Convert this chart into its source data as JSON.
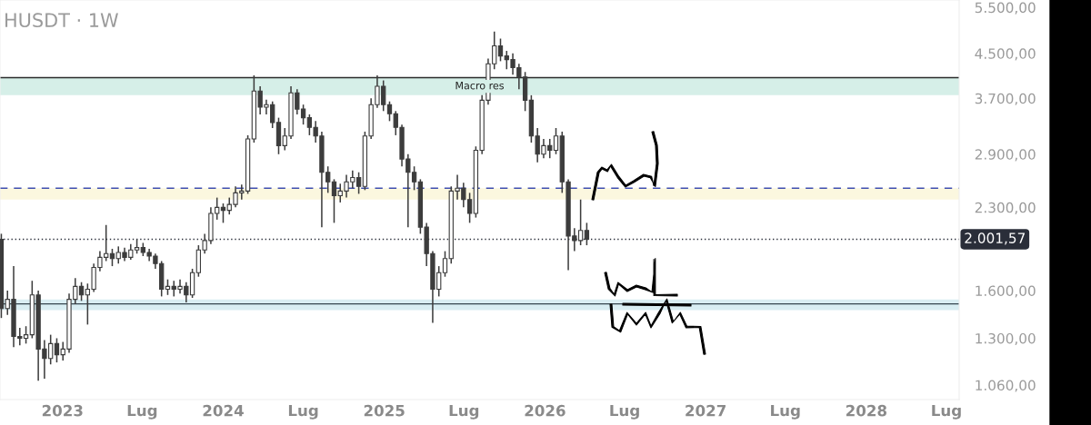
{
  "chart_data": {
    "type": "candlestick",
    "title": "HUSDT · 1W",
    "x": [
      "2022-08-15",
      "2022-08-29",
      "2022-09-12",
      "2022-09-26",
      "2022-10-10",
      "2022-10-24",
      "2022-11-07",
      "2022-11-21",
      "2022-12-05",
      "2022-12-19",
      "2023-01-02",
      "2023-01-16",
      "2023-01-30",
      "2023-02-13",
      "2023-02-27",
      "2023-03-13",
      "2023-03-27",
      "2023-04-10",
      "2023-04-24",
      "2023-05-08",
      "2023-05-22",
      "2023-06-05",
      "2023-06-19",
      "2023-07-03",
      "2023-07-17",
      "2023-07-31",
      "2023-08-14",
      "2023-08-28",
      "2023-09-11",
      "2023-09-25",
      "2023-10-09",
      "2023-10-23",
      "2023-11-06",
      "2023-11-20",
      "2023-12-04",
      "2023-12-18",
      "2024-01-01",
      "2024-01-15",
      "2024-01-29",
      "2024-02-12",
      "2024-02-26",
      "2024-03-11",
      "2024-03-25",
      "2024-04-08",
      "2024-04-22",
      "2024-05-06",
      "2024-05-20",
      "2024-06-03",
      "2024-06-17",
      "2024-07-01",
      "2024-07-15",
      "2024-07-29",
      "2024-08-12",
      "2024-08-26",
      "2024-09-09",
      "2024-09-23",
      "2024-10-07",
      "2024-10-21",
      "2024-11-04",
      "2024-11-18",
      "2024-12-02",
      "2024-12-16",
      "2024-12-30",
      "2025-01-13",
      "2025-01-27",
      "2025-02-10",
      "2025-02-24",
      "2025-03-10",
      "2025-03-24",
      "2025-04-07",
      "2025-04-21",
      "2025-05-05",
      "2025-05-19",
      "2025-06-02",
      "2025-06-16",
      "2025-06-30",
      "2025-07-14",
      "2025-07-28",
      "2025-08-11",
      "2025-08-25",
      "2025-09-08",
      "2025-09-22",
      "2025-10-06",
      "2025-10-20",
      "2025-11-03",
      "2025-11-17",
      "2025-12-01",
      "2025-12-15",
      "2025-12-29",
      "2026-01-12",
      "2026-01-26",
      "2026-02-09",
      "2026-02-23",
      "2026-03-09",
      "2026-03-23",
      "2026-04-06"
    ],
    "series": [
      {
        "color": "#3c3c3c",
        "ohlc": [
          [
            2000,
            2050,
            1420,
            1480
          ],
          [
            1480,
            1600,
            1440,
            1540
          ],
          [
            1540,
            1780,
            1250,
            1310
          ],
          [
            1310,
            1360,
            1260,
            1300
          ],
          [
            1300,
            1370,
            1270,
            1320
          ],
          [
            1320,
            1670,
            1300,
            1570
          ],
          [
            1570,
            1600,
            1080,
            1240
          ],
          [
            1240,
            1290,
            1090,
            1190
          ],
          [
            1190,
            1320,
            1160,
            1270
          ],
          [
            1270,
            1300,
            1170,
            1210
          ],
          [
            1210,
            1280,
            1180,
            1240
          ],
          [
            1240,
            1580,
            1220,
            1540
          ],
          [
            1540,
            1690,
            1510,
            1630
          ],
          [
            1630,
            1660,
            1530,
            1570
          ],
          [
            1570,
            1650,
            1380,
            1610
          ],
          [
            1610,
            1800,
            1590,
            1770
          ],
          [
            1770,
            1900,
            1740,
            1850
          ],
          [
            1850,
            2130,
            1820,
            1880
          ],
          [
            1880,
            1920,
            1780,
            1840
          ],
          [
            1840,
            1940,
            1800,
            1890
          ],
          [
            1890,
            1930,
            1820,
            1850
          ],
          [
            1850,
            1960,
            1830,
            1910
          ],
          [
            1910,
            2000,
            1880,
            1930
          ],
          [
            1930,
            1970,
            1860,
            1890
          ],
          [
            1890,
            1920,
            1820,
            1860
          ],
          [
            1860,
            1880,
            1760,
            1800
          ],
          [
            1800,
            1820,
            1560,
            1610
          ],
          [
            1610,
            1680,
            1570,
            1630
          ],
          [
            1630,
            1670,
            1560,
            1610
          ],
          [
            1610,
            1680,
            1580,
            1630
          ],
          [
            1630,
            1660,
            1520,
            1570
          ],
          [
            1570,
            1760,
            1550,
            1730
          ],
          [
            1730,
            1950,
            1700,
            1910
          ],
          [
            1910,
            2050,
            1880,
            1990
          ],
          [
            1990,
            2300,
            1960,
            2240
          ],
          [
            2240,
            2400,
            2180,
            2300
          ],
          [
            2300,
            2340,
            2150,
            2270
          ],
          [
            2270,
            2400,
            2230,
            2330
          ],
          [
            2330,
            2520,
            2300,
            2450
          ],
          [
            2450,
            2540,
            2380,
            2470
          ],
          [
            2470,
            3150,
            2440,
            3100
          ],
          [
            3100,
            4090,
            3050,
            3820
          ],
          [
            3820,
            3900,
            3450,
            3560
          ],
          [
            3560,
            3680,
            3450,
            3600
          ],
          [
            3600,
            3650,
            3250,
            3330
          ],
          [
            3330,
            3400,
            2900,
            3010
          ],
          [
            3010,
            3250,
            2950,
            3140
          ],
          [
            3140,
            3900,
            3100,
            3790
          ],
          [
            3790,
            3850,
            3450,
            3530
          ],
          [
            3530,
            3600,
            3300,
            3400
          ],
          [
            3400,
            3450,
            3150,
            3260
          ],
          [
            3260,
            3350,
            3050,
            3140
          ],
          [
            3140,
            3200,
            2110,
            2680
          ],
          [
            2680,
            2750,
            2450,
            2570
          ],
          [
            2570,
            2600,
            2150,
            2420
          ],
          [
            2420,
            2550,
            2350,
            2470
          ],
          [
            2470,
            2650,
            2400,
            2570
          ],
          [
            2570,
            2700,
            2500,
            2620
          ],
          [
            2620,
            2680,
            2440,
            2520
          ],
          [
            2520,
            3200,
            2480,
            3140
          ],
          [
            3140,
            3700,
            3100,
            3600
          ],
          [
            3600,
            4090,
            3550,
            3900
          ],
          [
            3900,
            4000,
            3500,
            3600
          ],
          [
            3600,
            3650,
            3350,
            3460
          ],
          [
            3460,
            3500,
            3150,
            3260
          ],
          [
            3260,
            3300,
            2750,
            2840
          ],
          [
            2840,
            2900,
            2110,
            2680
          ],
          [
            2680,
            2750,
            2480,
            2570
          ],
          [
            2570,
            2600,
            2050,
            2110
          ],
          [
            2110,
            2150,
            1780,
            1880
          ],
          [
            1880,
            1900,
            1390,
            1610
          ],
          [
            1610,
            1780,
            1560,
            1730
          ],
          [
            1730,
            1900,
            1700,
            1840
          ],
          [
            1840,
            2520,
            1800,
            2470
          ],
          [
            2470,
            2650,
            2380,
            2500
          ],
          [
            2500,
            2560,
            2300,
            2380
          ],
          [
            2380,
            2450,
            2150,
            2240
          ],
          [
            2240,
            3000,
            2200,
            2950
          ],
          [
            2950,
            3750,
            2900,
            3670
          ],
          [
            3670,
            4400,
            3600,
            4300
          ],
          [
            4300,
            4950,
            4200,
            4650
          ],
          [
            4650,
            4800,
            4350,
            4450
          ],
          [
            4450,
            4550,
            4200,
            4380
          ],
          [
            4380,
            4500,
            4100,
            4230
          ],
          [
            4230,
            4300,
            3850,
            4060
          ],
          [
            4060,
            4150,
            3500,
            3670
          ],
          [
            3670,
            3750,
            3050,
            3140
          ],
          [
            3140,
            3250,
            2800,
            2900
          ],
          [
            2900,
            3100,
            2850,
            3010
          ],
          [
            3010,
            3100,
            2850,
            2950
          ],
          [
            2950,
            3250,
            2900,
            3140
          ],
          [
            3140,
            3200,
            2450,
            2570
          ],
          [
            2570,
            2600,
            1750,
            2030
          ],
          [
            2030,
            2100,
            1900,
            1990
          ],
          [
            1990,
            2380,
            1950,
            2080
          ],
          [
            2080,
            2150,
            1950,
            2001.57
          ]
        ]
      }
    ],
    "xlim": [
      "2022-08-12",
      "2028-07-30"
    ],
    "xticks": [
      {
        "value": "2023-01-01",
        "label": "2023"
      },
      {
        "value": "2023-07-01",
        "label": "Lug"
      },
      {
        "value": "2024-01-01",
        "label": "2024"
      },
      {
        "value": "2024-07-01",
        "label": "Lug"
      },
      {
        "value": "2025-01-01",
        "label": "2025"
      },
      {
        "value": "2025-07-01",
        "label": "Lug"
      },
      {
        "value": "2026-01-01",
        "label": "2026"
      },
      {
        "value": "2026-07-01",
        "label": "Lug"
      },
      {
        "value": "2027-01-01",
        "label": "2027"
      },
      {
        "value": "2027-07-01",
        "label": "Lug"
      },
      {
        "value": "2028-01-01",
        "label": "2028"
      },
      {
        "value": "2028-07-01",
        "label": "Lug"
      }
    ],
    "log": true,
    "ylim": [
      995,
      5680
    ],
    "yticks": [
      {
        "value": 1060,
        "label": "1.060,00"
      },
      {
        "value": 1300,
        "label": "1.300,00"
      },
      {
        "value": 1600,
        "label": "1.600,00"
      },
      {
        "value": 2300,
        "label": "2.300,00"
      },
      {
        "value": 2900,
        "label": "2.900,00"
      },
      {
        "value": 3700,
        "label": "3.700,00"
      },
      {
        "value": 4500,
        "label": "4.500,00"
      },
      {
        "value": 5500,
        "label": "5.500,00"
      }
    ],
    "bands": [
      {
        "axis": "y",
        "from": 3750,
        "to": 4050,
        "label": "Macro res",
        "color": "#d6efe8"
      },
      {
        "axis": "y",
        "from": 2380,
        "to": 2500,
        "color": "#fbf7df"
      },
      {
        "axis": "y",
        "from": 1470,
        "to": 1540,
        "color": "#d9eef3"
      }
    ],
    "ref_lines": [
      {
        "axis": "y",
        "value": 4050,
        "color": "#2b2b2b",
        "line_style": "solid"
      },
      {
        "axis": "y",
        "value": 2500,
        "color": "#3f4fb0",
        "line_style": "dashed"
      },
      {
        "axis": "y",
        "value": 1510,
        "color": "#37474f",
        "line_style": "solid"
      },
      {
        "axis": "y",
        "value": 2001.57,
        "label": "2.001,57",
        "color": "#2a2e39",
        "line_style": "dotted"
      }
    ],
    "grid": false
  }
}
